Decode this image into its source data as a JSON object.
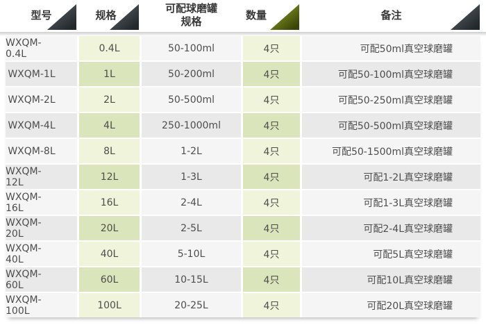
{
  "table": {
    "header": [
      {
        "label": "型号"
      },
      {
        "label": "规格"
      },
      {
        "label": "可配球磨罐",
        "label2": "规格"
      },
      {
        "label": "数量"
      },
      {
        "label": "备注"
      }
    ],
    "rows": [
      [
        "WXQM-0.4L",
        "0.4L",
        "50-100ml",
        "4只",
        "可配50ml真空球磨罐"
      ],
      [
        "WXQM-1L",
        "1L",
        "50-200ml",
        "4只",
        "可配50-100ml真空球磨罐"
      ],
      [
        "WXQM-2L",
        "2L",
        "50-500ml",
        "4只",
        "可配50-250ml真空球磨罐"
      ],
      [
        "WXQM-4L",
        "4L",
        "250-1000ml",
        "4只",
        "可配50-500ml真空球磨罐"
      ],
      [
        "WXQM-8L",
        "8L",
        "1-2L",
        "4只",
        "可配50-1500ml真空球磨罐"
      ],
      [
        "WXQM-12L",
        "12L",
        "1-3L",
        "4只",
        "可配1-2L真空球磨罐"
      ],
      [
        "WXQM-16L",
        "16L",
        "2-4L",
        "4只",
        "可配1-3L真空球磨罐"
      ],
      [
        "WXQM-20L",
        "20L",
        "2-5L",
        "4只",
        "可配2-4L真空球磨罐"
      ],
      [
        "WXQM-40L",
        "40L",
        "5-10L",
        "4只",
        "可配5L真空球磨罐"
      ],
      [
        "WXQM-60L",
        "60L",
        "10-15L",
        "4只",
        "可配10L真空球磨罐"
      ],
      [
        "WXQM-100L",
        "100L",
        "20-25L",
        "4只",
        "可配20L真空球磨罐"
      ]
    ],
    "colors": {
      "header_text": "#383838",
      "triangle_dark": "#23282c",
      "triangle_dark_highlight": "#9ba1a6",
      "triangle_green": "#71821d",
      "triangle_green_highlight": "#b9c566",
      "row_light": "#f5f5f5",
      "row_dark": "#e9e9e9",
      "spec_col_light": "#f0f4da",
      "spec_col_dark": "#dbe5bc",
      "body_text": "#4d4d4d"
    }
  }
}
